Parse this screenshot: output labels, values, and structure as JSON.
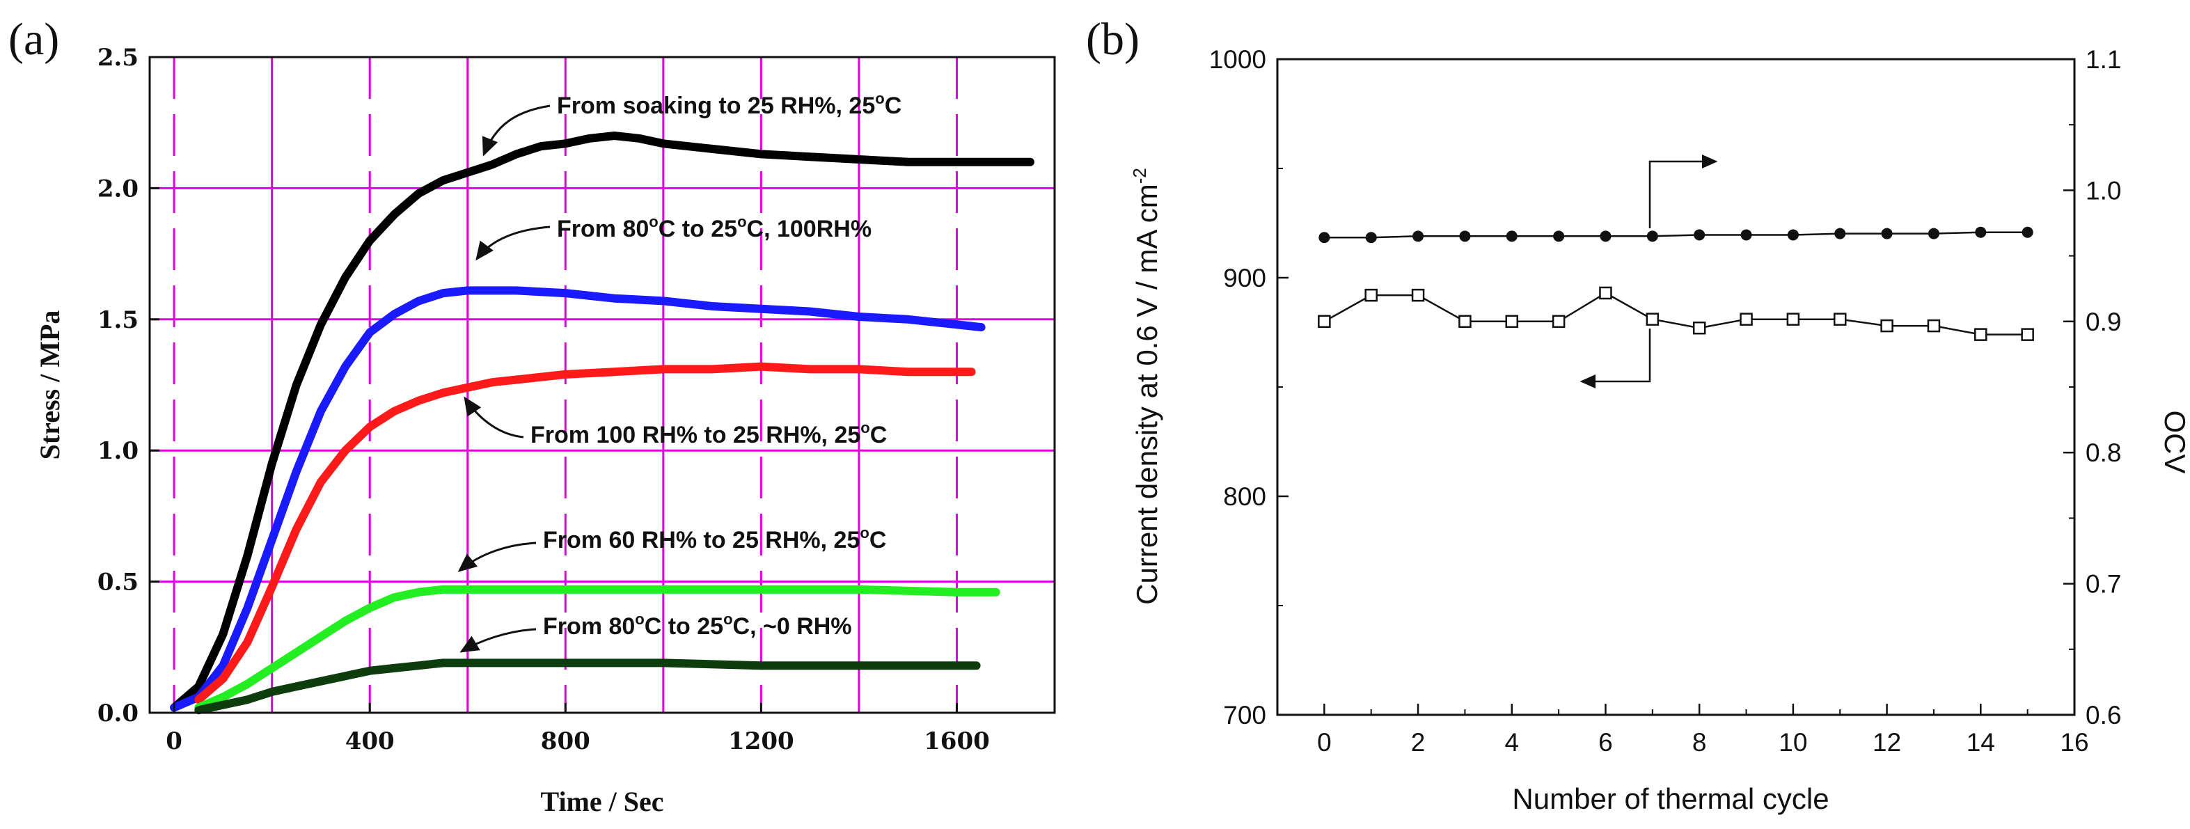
{
  "panels": {
    "a": "(a)",
    "b": "(b)"
  },
  "chart_data": [
    {
      "type": "line",
      "panel": "(a)",
      "title": "",
      "xlabel": "Time / Sec",
      "ylabel": "Stress / MPa",
      "xlim": [
        -50,
        1800
      ],
      "ylim": [
        0,
        2.5
      ],
      "xticks": [
        0,
        400,
        800,
        1200,
        1600
      ],
      "xtick_labels": [
        "0",
        "400",
        "800",
        "1200",
        "1600"
      ],
      "yticks": [
        0,
        0.5,
        1.0,
        1.5,
        2.0,
        2.5
      ],
      "ytick_labels": [
        "0.0",
        "0.5",
        "1.0",
        "1.5",
        "2.0",
        "2.5"
      ],
      "grid": true,
      "grid_color": "#e000e0",
      "series": [
        {
          "name": "From soaking to 25 RH%, 25°C",
          "color": "#000000",
          "x": [
            0,
            50,
            100,
            150,
            200,
            250,
            300,
            350,
            400,
            450,
            500,
            550,
            600,
            650,
            700,
            750,
            800,
            850,
            900,
            950,
            1000,
            1100,
            1200,
            1300,
            1400,
            1500,
            1600,
            1700,
            1750
          ],
          "y": [
            0.02,
            0.1,
            0.3,
            0.6,
            0.95,
            1.25,
            1.48,
            1.66,
            1.8,
            1.9,
            1.98,
            2.03,
            2.06,
            2.09,
            2.13,
            2.16,
            2.17,
            2.19,
            2.2,
            2.19,
            2.17,
            2.15,
            2.13,
            2.12,
            2.11,
            2.1,
            2.1,
            2.1,
            2.1
          ]
        },
        {
          "name": "From 80°C to 25°C, 100RH%",
          "color": "#1a1aff",
          "x": [
            0,
            50,
            100,
            150,
            200,
            250,
            300,
            350,
            400,
            450,
            500,
            550,
            600,
            650,
            700,
            800,
            900,
            1000,
            1100,
            1200,
            1300,
            1400,
            1500,
            1600,
            1650
          ],
          "y": [
            0.02,
            0.06,
            0.18,
            0.4,
            0.66,
            0.92,
            1.15,
            1.32,
            1.45,
            1.52,
            1.57,
            1.6,
            1.61,
            1.61,
            1.61,
            1.6,
            1.58,
            1.57,
            1.55,
            1.54,
            1.53,
            1.51,
            1.5,
            1.48,
            1.47
          ]
        },
        {
          "name": "From 100 RH% to 25 RH%, 25°C",
          "color": "#ff1a1a",
          "x": [
            50,
            100,
            150,
            200,
            250,
            300,
            350,
            400,
            450,
            500,
            550,
            600,
            650,
            700,
            800,
            900,
            1000,
            1100,
            1200,
            1300,
            1400,
            1500,
            1600,
            1630
          ],
          "y": [
            0.05,
            0.13,
            0.27,
            0.48,
            0.7,
            0.88,
            1.0,
            1.09,
            1.15,
            1.19,
            1.22,
            1.24,
            1.26,
            1.27,
            1.29,
            1.3,
            1.31,
            1.31,
            1.32,
            1.31,
            1.31,
            1.3,
            1.3,
            1.3
          ]
        },
        {
          "name": "From 60 RH% to 25 RH%, 25°C",
          "color": "#22ee22",
          "x": [
            50,
            100,
            150,
            200,
            250,
            300,
            350,
            400,
            450,
            500,
            550,
            600,
            700,
            800,
            900,
            1000,
            1200,
            1400,
            1600,
            1680
          ],
          "y": [
            0.02,
            0.06,
            0.11,
            0.17,
            0.23,
            0.29,
            0.35,
            0.4,
            0.44,
            0.46,
            0.47,
            0.47,
            0.47,
            0.47,
            0.47,
            0.47,
            0.47,
            0.47,
            0.46,
            0.46
          ]
        },
        {
          "name": "From 80°C to 25°C, ~0 RH%",
          "color": "#0d3d0d",
          "x": [
            50,
            100,
            150,
            200,
            250,
            300,
            350,
            400,
            450,
            500,
            550,
            600,
            700,
            800,
            1000,
            1200,
            1400,
            1600,
            1640
          ],
          "y": [
            0.01,
            0.03,
            0.05,
            0.08,
            0.1,
            0.12,
            0.14,
            0.16,
            0.17,
            0.18,
            0.19,
            0.19,
            0.19,
            0.19,
            0.19,
            0.18,
            0.18,
            0.18,
            0.18
          ]
        }
      ],
      "annotations": [
        {
          "text": "From soaking to 25 RH%, 25",
          "sup": "o",
          "suffix": "C"
        },
        {
          "text": "From 80",
          "sup": "o",
          "suffix": "C to 25",
          "sup2": "o",
          "suffix2": "C, 100RH%"
        },
        {
          "text": "From 100 RH% to 25 RH%, 25",
          "sup": "o",
          "suffix": "C"
        },
        {
          "text": "From 60 RH% to 25 RH%, 25",
          "sup": "o",
          "suffix": "C"
        },
        {
          "text": "From 80",
          "sup": "o",
          "suffix": "C to 25",
          "sup2": "o",
          "suffix2": "C, ~0 RH%"
        }
      ]
    },
    {
      "type": "line",
      "panel": "(b)",
      "title": "",
      "xlabel": "Number of thermal cycle",
      "ylabel": "Current density at 0.6 V / mA cm",
      "ylabel_sup": "-2",
      "y2label": "OCV",
      "xlim": [
        -1,
        16
      ],
      "ylim": [
        700,
        1000
      ],
      "y2lim": [
        0.6,
        1.1
      ],
      "xticks": [
        0,
        2,
        4,
        6,
        8,
        10,
        12,
        14,
        16
      ],
      "xtick_labels": [
        "0",
        "2",
        "4",
        "6",
        "8",
        "10",
        "12",
        "14",
        "16"
      ],
      "yticks": [
        700,
        800,
        900,
        1000
      ],
      "ytick_labels": [
        "700",
        "800",
        "900",
        "1000"
      ],
      "y2ticks": [
        0.6,
        0.7,
        0.8,
        0.9,
        1.0,
        1.1
      ],
      "y2tick_labels": [
        "0.6",
        "0.7",
        "0.8",
        "0.9",
        "1.0",
        "1.1"
      ],
      "grid": false,
      "series": [
        {
          "name": "OCV",
          "axis": "right",
          "marker": "filled-circle",
          "x": [
            0,
            1,
            2,
            3,
            4,
            5,
            6,
            7,
            8,
            9,
            10,
            11,
            12,
            13,
            14,
            15
          ],
          "y": [
            0.964,
            0.964,
            0.965,
            0.965,
            0.965,
            0.965,
            0.965,
            0.965,
            0.966,
            0.966,
            0.966,
            0.967,
            0.967,
            0.967,
            0.968,
            0.968
          ]
        },
        {
          "name": "Current density",
          "axis": "left",
          "marker": "open-square",
          "x": [
            0,
            1,
            2,
            3,
            4,
            5,
            6,
            7,
            8,
            9,
            10,
            11,
            12,
            13,
            14,
            15
          ],
          "y": [
            880,
            892,
            892,
            880,
            880,
            880,
            893,
            881,
            877,
            881,
            881,
            881,
            878,
            878,
            874,
            874
          ]
        }
      ]
    }
  ]
}
